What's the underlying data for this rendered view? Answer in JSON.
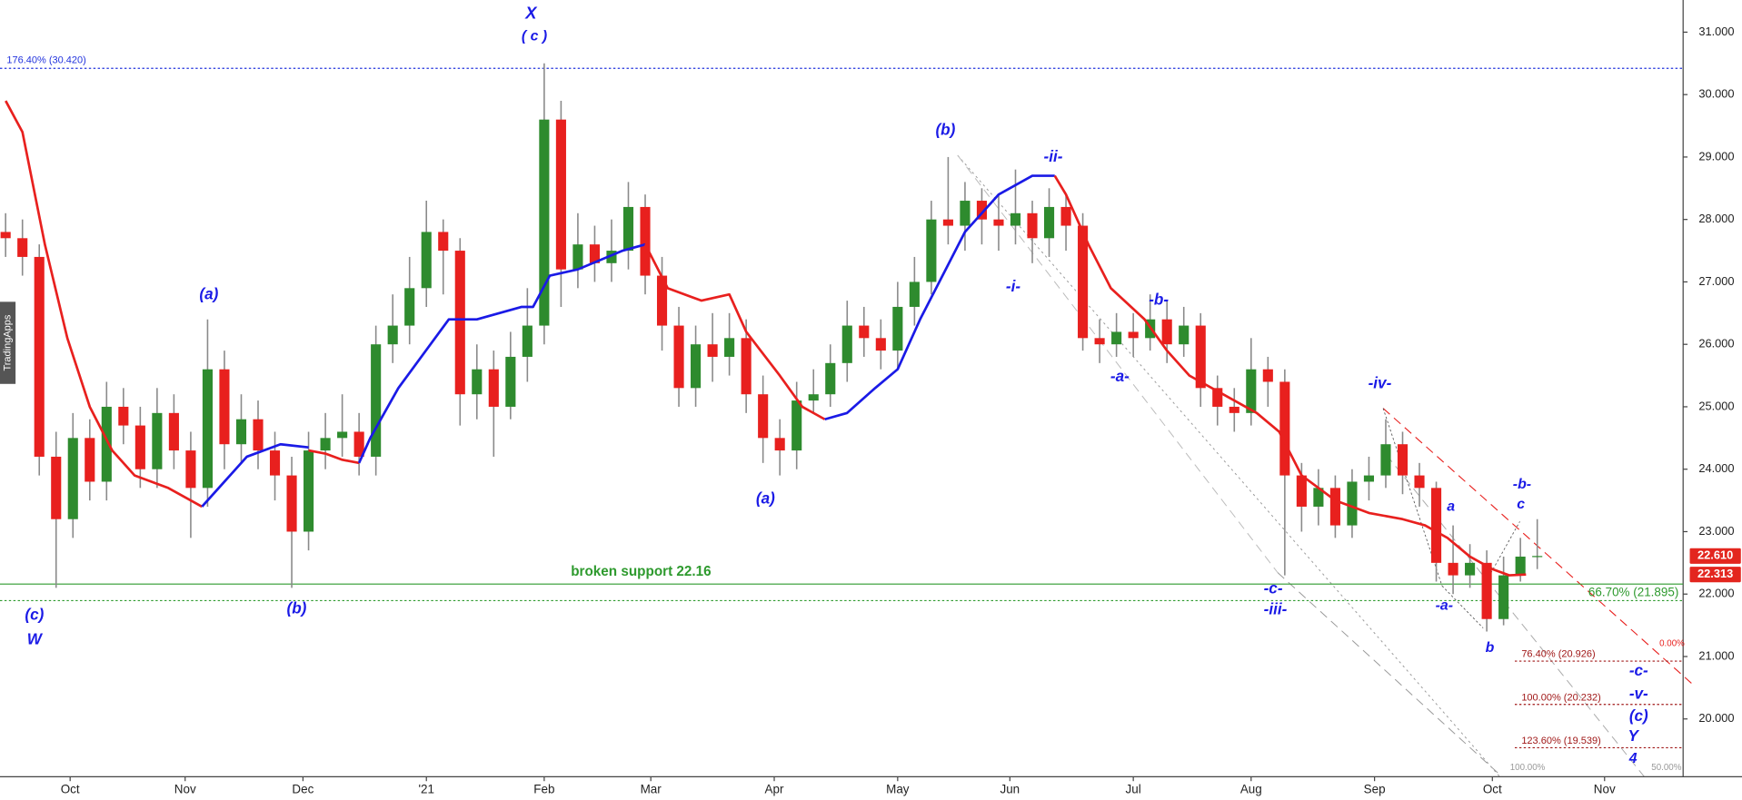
{
  "chart_data": {
    "type": "candlestick",
    "watermark": "TradingApps",
    "x": [
      1,
      4,
      7,
      10,
      13,
      16,
      19,
      22,
      25,
      28,
      31,
      34,
      37,
      40,
      43,
      46,
      49,
      52,
      55,
      58,
      61,
      64,
      67,
      70,
      73,
      76,
      79,
      82,
      85,
      88,
      91,
      94,
      97,
      100,
      103,
      106,
      109,
      112,
      115,
      118,
      121,
      124,
      127,
      130,
      133,
      136,
      139,
      142,
      145,
      148,
      151,
      154,
      157,
      160,
      163,
      166,
      169,
      172,
      175,
      178,
      181,
      184,
      187,
      190,
      193,
      196,
      199,
      202,
      205,
      208,
      211,
      214,
      217,
      220,
      223,
      226,
      229,
      232,
      235,
      238,
      241,
      244,
      247,
      250,
      253,
      256,
      259,
      262,
      265,
      268,
      271,
      274
    ],
    "open": [
      27.8,
      27.7,
      27.4,
      24.2,
      23.2,
      24.5,
      23.8,
      25.0,
      24.7,
      24.0,
      24.9,
      24.3,
      23.7,
      25.6,
      24.4,
      24.8,
      24.3,
      23.9,
      23.0,
      24.3,
      24.5,
      24.6,
      24.2,
      26.0,
      26.3,
      26.9,
      27.8,
      27.5,
      25.2,
      25.6,
      25.0,
      25.8,
      26.3,
      29.6,
      27.2,
      27.6,
      27.3,
      27.5,
      28.2,
      27.1,
      26.3,
      25.3,
      26.0,
      25.8,
      26.1,
      25.2,
      24.5,
      24.3,
      25.1,
      25.2,
      25.7,
      26.3,
      26.1,
      25.9,
      26.6,
      27.0,
      28.0,
      27.9,
      28.3,
      28.0,
      27.9,
      28.1,
      27.7,
      28.2,
      27.9,
      26.1,
      26.0,
      26.2,
      26.1,
      26.4,
      26.0,
      26.3,
      25.3,
      25.0,
      24.9,
      25.6,
      25.4,
      23.9,
      23.4,
      23.7,
      23.1,
      23.8,
      23.9,
      24.4,
      23.9,
      23.7,
      22.5,
      22.3,
      22.5,
      21.6,
      22.3,
      22.6
    ],
    "high": [
      28.1,
      28.0,
      27.6,
      24.6,
      24.9,
      24.8,
      25.4,
      25.3,
      25.0,
      25.3,
      25.2,
      24.6,
      26.4,
      25.9,
      25.2,
      25.1,
      24.6,
      24.2,
      24.6,
      24.9,
      25.2,
      24.9,
      26.3,
      26.8,
      27.4,
      28.3,
      28.0,
      27.7,
      26.0,
      25.9,
      26.2,
      26.9,
      30.5,
      29.9,
      28.1,
      27.9,
      28.0,
      28.6,
      28.4,
      27.4,
      26.6,
      26.3,
      26.5,
      26.5,
      26.4,
      25.5,
      24.8,
      25.4,
      25.6,
      26.0,
      26.7,
      26.6,
      26.4,
      27.0,
      27.4,
      28.3,
      29.0,
      28.6,
      28.5,
      28.4,
      28.8,
      28.3,
      28.5,
      28.4,
      28.1,
      26.4,
      26.5,
      26.5,
      26.8,
      26.7,
      26.6,
      26.5,
      25.5,
      25.3,
      26.1,
      25.8,
      25.6,
      24.1,
      24.0,
      23.9,
      24.0,
      24.2,
      24.8,
      24.6,
      24.1,
      23.8,
      23.1,
      22.8,
      22.7,
      22.6,
      22.9,
      23.2
    ],
    "low": [
      27.4,
      27.1,
      23.9,
      22.1,
      22.9,
      23.5,
      23.5,
      24.4,
      23.7,
      23.7,
      24.0,
      22.9,
      23.4,
      24.0,
      24.1,
      24.0,
      23.5,
      22.1,
      22.7,
      24.0,
      24.2,
      23.9,
      23.9,
      25.7,
      26.0,
      26.6,
      26.8,
      24.7,
      24.8,
      24.2,
      24.8,
      25.4,
      26.0,
      26.6,
      26.9,
      27.0,
      27.0,
      27.2,
      26.8,
      25.9,
      25.0,
      25.0,
      25.4,
      25.5,
      24.9,
      24.1,
      23.9,
      24.0,
      24.9,
      25.0,
      25.4,
      25.8,
      25.6,
      25.6,
      26.3,
      26.8,
      27.6,
      27.5,
      27.6,
      27.5,
      27.6,
      27.3,
      27.4,
      27.5,
      25.9,
      25.7,
      25.8,
      25.8,
      25.9,
      25.7,
      25.8,
      25.0,
      24.7,
      24.6,
      24.7,
      25.0,
      22.3,
      23.0,
      23.1,
      22.9,
      22.9,
      23.5,
      23.7,
      23.6,
      23.4,
      22.2,
      22.0,
      22.1,
      21.4,
      21.5,
      22.2,
      22.4
    ],
    "close": [
      27.7,
      27.4,
      24.2,
      23.2,
      24.5,
      23.8,
      25.0,
      24.7,
      24.0,
      24.9,
      24.3,
      23.7,
      25.6,
      24.4,
      24.8,
      24.3,
      23.9,
      23.0,
      24.3,
      24.5,
      24.6,
      24.2,
      26.0,
      26.3,
      26.9,
      27.8,
      27.5,
      25.2,
      25.6,
      25.0,
      25.8,
      26.3,
      29.6,
      27.2,
      27.6,
      27.3,
      27.5,
      28.2,
      27.1,
      26.3,
      25.3,
      26.0,
      25.8,
      26.1,
      25.2,
      24.5,
      24.3,
      25.1,
      25.2,
      25.7,
      26.3,
      26.1,
      25.9,
      26.6,
      27.0,
      28.0,
      27.9,
      28.3,
      28.0,
      27.9,
      28.1,
      27.7,
      28.2,
      27.9,
      26.1,
      26.0,
      26.2,
      26.1,
      26.4,
      26.0,
      26.3,
      25.3,
      25.0,
      24.9,
      25.6,
      25.4,
      23.9,
      23.4,
      23.7,
      23.1,
      23.8,
      23.9,
      24.4,
      23.9,
      23.7,
      22.5,
      22.3,
      22.5,
      21.6,
      22.3,
      22.6,
      22.61
    ],
    "up_color": "#2e8b2e",
    "down_color": "#e8201e",
    "wick_color": "#8a8a8a",
    "xlim": [
      0,
      300
    ],
    "xticks": [
      {
        "value": 12.5,
        "label": "Oct"
      },
      {
        "value": 33,
        "label": "Nov"
      },
      {
        "value": 54,
        "label": "Dec"
      },
      {
        "value": 76,
        "label": "'21"
      },
      {
        "value": 97,
        "label": "Feb"
      },
      {
        "value": 116,
        "label": "Mar"
      },
      {
        "value": 138,
        "label": "Apr"
      },
      {
        "value": 160,
        "label": "May"
      },
      {
        "value": 180,
        "label": "Jun"
      },
      {
        "value": 202,
        "label": "Jul"
      },
      {
        "value": 223,
        "label": "Aug"
      },
      {
        "value": 245,
        "label": "Sep"
      },
      {
        "value": 266,
        "label": "Oct"
      },
      {
        "value": 286,
        "label": "Nov"
      }
    ],
    "ylim": [
      19.075,
      31.515
    ],
    "yticks": [
      {
        "value": 20,
        "label": "20.000"
      },
      {
        "value": 21,
        "label": "21.000"
      },
      {
        "value": 22,
        "label": "22.000"
      },
      {
        "value": 23,
        "label": "23.000"
      },
      {
        "value": 24,
        "label": "24.000"
      },
      {
        "value": 25,
        "label": "25.000"
      },
      {
        "value": 26,
        "label": "26.000"
      },
      {
        "value": 27,
        "label": "27.000"
      },
      {
        "value": 28,
        "label": "28.000"
      },
      {
        "value": 29,
        "label": "29.000"
      },
      {
        "value": 30,
        "label": "30.000"
      },
      {
        "value": 31,
        "label": "31.000"
      }
    ],
    "ma_segments": [
      {
        "color": "#e8201e",
        "x": [
          1,
          4,
          8,
          12,
          16,
          20,
          24,
          30,
          36
        ],
        "values": [
          29.9,
          29.4,
          27.6,
          26.1,
          25.0,
          24.3,
          23.9,
          23.7,
          23.4
        ]
      },
      {
        "color": "#1a1ae6",
        "x": [
          36,
          40,
          44,
          50,
          55
        ],
        "values": [
          23.4,
          23.8,
          24.2,
          24.4,
          24.35
        ]
      },
      {
        "color": "#e8201e",
        "x": [
          55,
          58,
          61,
          64
        ],
        "values": [
          24.3,
          24.25,
          24.15,
          24.1
        ]
      },
      {
        "color": "#1a1ae6",
        "x": [
          64,
          66,
          71,
          80,
          85,
          93,
          95,
          98,
          103,
          111,
          115
        ],
        "values": [
          24.1,
          24.5,
          25.3,
          26.4,
          26.4,
          26.6,
          26.6,
          27.1,
          27.2,
          27.5,
          27.6
        ]
      },
      {
        "color": "#e8201e",
        "x": [
          115,
          119,
          125,
          130,
          133,
          139,
          143,
          147
        ],
        "values": [
          27.6,
          26.9,
          26.7,
          26.8,
          26.2,
          25.5,
          25.0,
          24.8
        ]
      },
      {
        "color": "#1a1ae6",
        "x": [
          147,
          151,
          156,
          160,
          164,
          168,
          172,
          178,
          184,
          188
        ],
        "values": [
          24.8,
          24.9,
          25.3,
          25.6,
          26.4,
          27.1,
          27.8,
          28.4,
          28.7,
          28.7
        ]
      },
      {
        "color": "#e8201e",
        "x": [
          188,
          190,
          194,
          198,
          204,
          208,
          212,
          218,
          224,
          228,
          232,
          238,
          244,
          250,
          254,
          258,
          262,
          266,
          269,
          272
        ],
        "values": [
          28.7,
          28.4,
          27.6,
          26.9,
          26.4,
          25.9,
          25.5,
          25.2,
          24.9,
          24.6,
          23.9,
          23.5,
          23.3,
          23.2,
          23.1,
          22.9,
          22.6,
          22.4,
          22.3,
          22.313
        ]
      }
    ],
    "levels": [
      {
        "value": 30.42,
        "label": "176.40% (30.420)",
        "color": "#2233dd",
        "style": "dotted"
      },
      {
        "value": 22.16,
        "label": "broken support 22.16",
        "color": "#2e9a2e",
        "style": "solid"
      },
      {
        "value": 21.895,
        "label": "66.70% (21.895)",
        "color": "#2e9a2e",
        "style": "dotted"
      },
      {
        "value": 20.926,
        "label": "76.40% (20.926)",
        "color": "#a01818",
        "style": "dotted"
      },
      {
        "value": 20.232,
        "label": "100.00% (20.232)",
        "color": "#a01818",
        "style": "dotted"
      },
      {
        "value": 19.539,
        "label": "123.60% (19.539)",
        "color": "#a01818",
        "style": "dotted"
      }
    ],
    "price_labels": [
      {
        "value": 22.61,
        "label": "22.610"
      },
      {
        "value": 22.313,
        "label": "22.313"
      }
    ],
    "price_label_color": "#e3261f",
    "annotations": [
      "X",
      "( c )",
      "(c)",
      "W",
      "(a)",
      "(b)",
      "(a)",
      "(b)",
      "-ii-",
      "-i-",
      "-b-",
      "-a-",
      "-c-",
      "-iii-",
      "-iv-",
      "a",
      "-a-",
      "b",
      "-b-",
      "c",
      "-c-",
      "-v-",
      "(c)",
      "Y",
      "4",
      "0.00%",
      "100.00%",
      "50.00%"
    ]
  }
}
